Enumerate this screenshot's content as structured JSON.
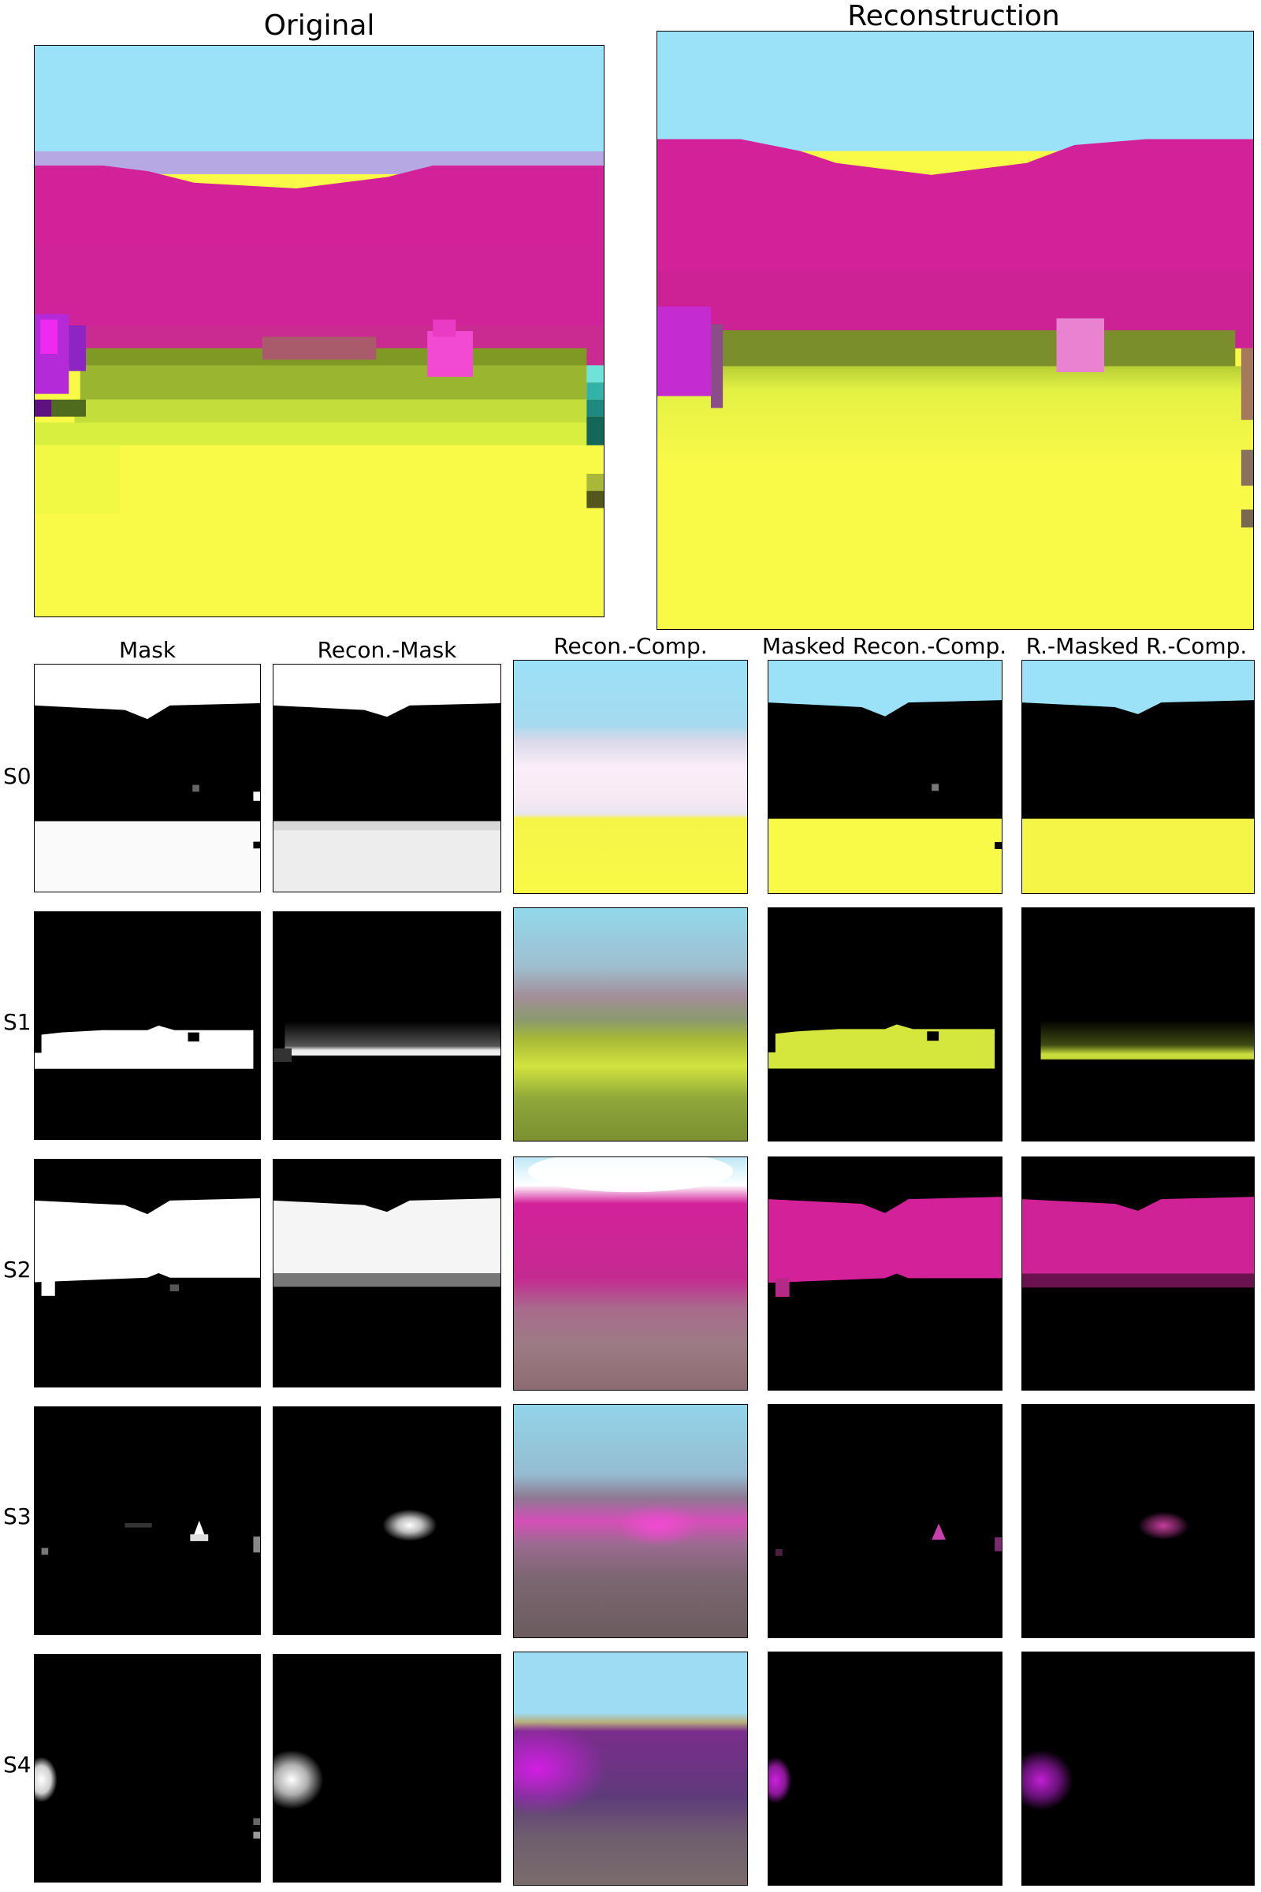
{
  "figure": {
    "original_title": "Original",
    "reconstruction_title": "Reconstruction",
    "columns": [
      "Mask",
      "Recon.-Mask",
      "Recon.-Comp.",
      "Masked Recon.-Comp.",
      "R.-Masked R.-Comp."
    ],
    "rows": [
      "S0",
      "S1",
      "S2",
      "S3",
      "S4"
    ]
  },
  "colors": {
    "sky": "#9be1f7",
    "magenta": "#d3219a",
    "olive": "#7e9a24",
    "yellow": "#f9f947",
    "purple": "#c021d8",
    "pink": "#f24ad2",
    "black": "#000000",
    "white": "#ffffff"
  }
}
